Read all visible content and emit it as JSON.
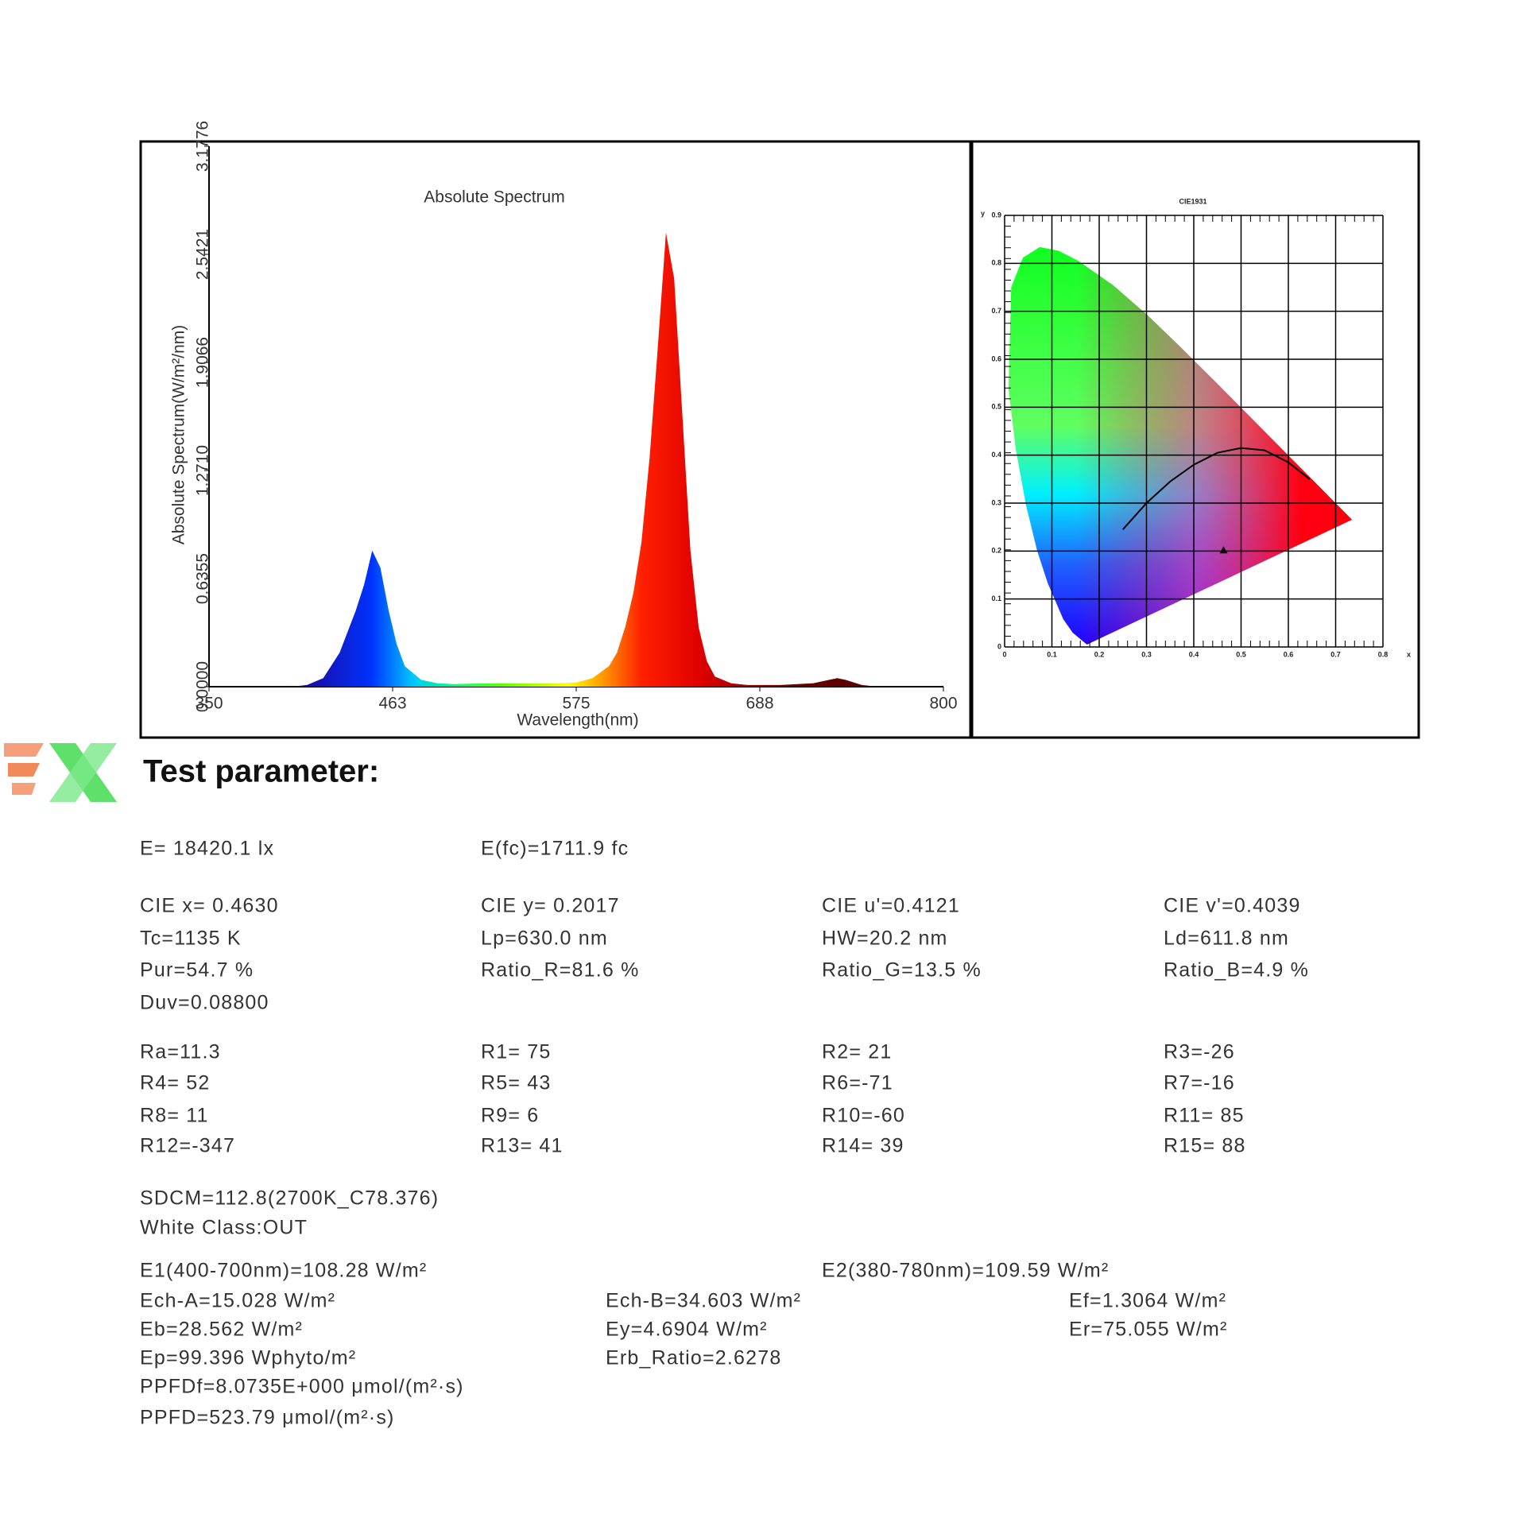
{
  "chart_data": [
    {
      "type": "area",
      "title": "Absolute Spectrum",
      "x_label": "Wavelength(nm)",
      "y_label": "Absolute Spectrum(W/m²/nm)",
      "x": [
        350,
        400,
        410,
        420,
        430,
        440,
        445,
        450,
        455,
        460,
        465,
        470,
        480,
        490,
        500,
        520,
        540,
        560,
        575,
        585,
        595,
        600,
        605,
        610,
        615,
        620,
        625,
        630,
        635,
        640,
        645,
        650,
        655,
        660,
        670,
        680,
        700,
        720,
        730,
        735,
        740,
        750,
        760,
        800
      ],
      "values": [
        0,
        0,
        0.01,
        0.05,
        0.2,
        0.45,
        0.6,
        0.8,
        0.7,
        0.45,
        0.25,
        0.12,
        0.04,
        0.02,
        0.015,
        0.02,
        0.02,
        0.02,
        0.025,
        0.05,
        0.12,
        0.2,
        0.35,
        0.55,
        0.85,
        1.35,
        2.0,
        2.67,
        2.4,
        1.6,
        0.8,
        0.35,
        0.15,
        0.06,
        0.02,
        0.01,
        0.01,
        0.02,
        0.04,
        0.05,
        0.04,
        0.01,
        0,
        0
      ],
      "xlim": [
        350,
        800
      ],
      "xticks": [
        350,
        {
          "value": 462.5,
          "label": "463"
        },
        575,
        {
          "value": 687.5,
          "label": "688"
        },
        800
      ],
      "ylim": [
        0,
        3.1776
      ],
      "yticks": [
        {
          "value": 0,
          "label": "0.0000"
        },
        0.6355,
        {
          "value": 1.271,
          "label": "1.2710"
        },
        1.9066,
        2.5421,
        3.1776
      ]
    },
    {
      "type": "scatter",
      "title": "CIE1931",
      "x_label": "x",
      "y_label": "y",
      "x": [
        0.463
      ],
      "values": [
        0.2017
      ],
      "xlim": [
        0,
        0.8
      ],
      "xticks": [
        0,
        0.1,
        0.2,
        0.3,
        0.4,
        0.5,
        0.6,
        0.7,
        0.8
      ],
      "ylim": [
        0,
        0.9
      ],
      "yticks": [
        0,
        0.1,
        0.2,
        0.3,
        0.4,
        0.5,
        0.6,
        0.7,
        0.8,
        0.9
      ],
      "grid": true
    }
  ],
  "params": {
    "heading": "Test parameter:",
    "illuminance": [
      [
        "E=  18420.1 lx",
        "E(fc)=1711.9 fc"
      ]
    ],
    "color": [
      [
        "CIE x= 0.4630",
        "CIE y= 0.2017",
        "CIE u'=0.4121",
        "CIE v'=0.4039"
      ],
      [
        "Tc=1135 K",
        "Lp=630.0 nm",
        "HW=20.2 nm",
        "Ld=611.8 nm"
      ],
      [
        "Pur=54.7 %",
        "Ratio_R=81.6 %",
        "Ratio_G=13.5 %",
        "Ratio_B=4.9 %"
      ],
      [
        "Duv=0.08800"
      ]
    ],
    "rendering": [
      [
        "Ra=11.3",
        "R1= 75",
        "R2= 21",
        "R3=-26"
      ],
      [
        "R4= 52",
        "R5= 43",
        "R6=-71",
        "R7=-16"
      ],
      [
        "R8= 11",
        "R9=  6",
        "R10=-60",
        "R11= 85"
      ],
      [
        "R12=-347",
        "R13= 41",
        "R14= 39",
        "R15= 88"
      ]
    ],
    "sdcm": [
      [
        "SDCM=112.8(2700K_C78.376)"
      ],
      [
        "White Class:OUT"
      ]
    ],
    "energy": [
      [
        "E1(400-700nm)=108.28 W/m²",
        "E2(380-780nm)=109.59 W/m²"
      ],
      [
        "Ech-A=15.028 W/m²",
        "Ech-B=34.603 W/m²",
        "Ef=1.3064 W/m²"
      ],
      [
        "Eb=28.562 W/m²",
        "Ey=4.6904 W/m²",
        "Er=75.055 W/m²"
      ],
      [
        "Ep=99.396 Wphyto/m²",
        "Erb_Ratio=2.6278"
      ],
      [
        "PPFDf=8.0735E+000 μmol/(m²·s)"
      ],
      [
        "PPFD=523.79 μmol/(m²·s)"
      ]
    ]
  }
}
